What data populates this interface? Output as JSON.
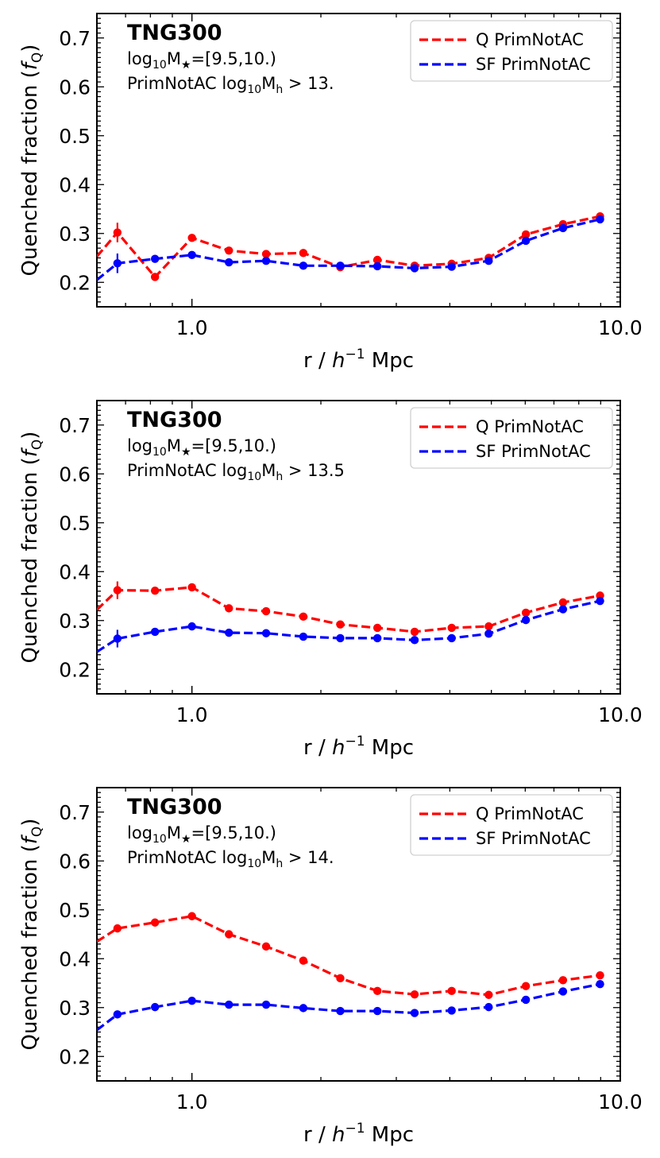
{
  "figure": {
    "panels_count": 3
  },
  "chart_data": [
    {
      "type": "line",
      "title": "TNG300",
      "annotations": [
        "log10M★=[9.5,10.)",
        "PrimNotAC log10Mh > 13."
      ],
      "annotation_parts": [
        {
          "pre": "log",
          "sub": "10",
          "post": "M",
          "sub2": "★",
          "tail": "=[9.5,10.)"
        },
        {
          "pre": "PrimNotAC log",
          "sub": "10",
          "post": "M",
          "sub2": "h",
          "tail": " > 13."
        }
      ],
      "xlabel": "r / h⁻¹ Mpc",
      "ylabel": "Quenched fraction (fQ)",
      "xscale": "log",
      "xlim": [
        0.6,
        10.0
      ],
      "ylim": [
        0.15,
        0.75
      ],
      "xtick_labels": [
        "1.0",
        "10.0"
      ],
      "ytick_labels": [
        "0.2",
        "0.3",
        "0.4",
        "0.5",
        "0.6",
        "0.7"
      ],
      "legend_position": "top-right",
      "x": [
        0.67,
        0.82,
        1.0,
        1.22,
        1.49,
        1.82,
        2.22,
        2.71,
        3.31,
        4.04,
        4.93,
        6.02,
        7.35,
        8.97
      ],
      "series": [
        {
          "name": "Q PrimNotAC",
          "color": "#ff0000",
          "values": [
            0.302,
            0.211,
            0.291,
            0.265,
            0.258,
            0.26,
            0.231,
            0.246,
            0.234,
            0.238,
            0.25,
            0.298,
            0.319,
            0.335
          ],
          "errors": [
            0.02,
            0.006,
            0.006,
            0.005,
            0.005,
            0.005,
            0.005,
            0.005,
            0.005,
            0.005,
            0.005,
            0.005,
            0.005,
            0.005
          ],
          "edge_values": [
            0.253,
            0.335
          ]
        },
        {
          "name": "SF PrimNotAC",
          "color": "#0000ff",
          "values": [
            0.239,
            0.248,
            0.256,
            0.241,
            0.244,
            0.234,
            0.234,
            0.233,
            0.229,
            0.232,
            0.244,
            0.285,
            0.311,
            0.329
          ],
          "errors": [
            0.02,
            0.006,
            0.006,
            0.005,
            0.005,
            0.005,
            0.005,
            0.005,
            0.005,
            0.005,
            0.005,
            0.005,
            0.005,
            0.005
          ],
          "edge_values": [
            0.205,
            0.329
          ]
        }
      ]
    },
    {
      "type": "line",
      "title": "TNG300",
      "annotations": [
        "log10M★=[9.5,10.)",
        "PrimNotAC log10Mh > 13.5"
      ],
      "annotation_parts": [
        {
          "pre": "log",
          "sub": "10",
          "post": "M",
          "sub2": "★",
          "tail": "=[9.5,10.)"
        },
        {
          "pre": "PrimNotAC log",
          "sub": "10",
          "post": "M",
          "sub2": "h",
          "tail": " > 13.5"
        }
      ],
      "xlabel": "r / h⁻¹ Mpc",
      "ylabel": "Quenched fraction (fQ)",
      "xscale": "log",
      "xlim": [
        0.6,
        10.0
      ],
      "ylim": [
        0.15,
        0.75
      ],
      "xtick_labels": [
        "1.0",
        "10.0"
      ],
      "ytick_labels": [
        "0.2",
        "0.3",
        "0.4",
        "0.5",
        "0.6",
        "0.7"
      ],
      "legend_position": "top-right",
      "x": [
        0.67,
        0.82,
        1.0,
        1.22,
        1.49,
        1.82,
        2.22,
        2.71,
        3.31,
        4.04,
        4.93,
        6.02,
        7.35,
        8.97
      ],
      "series": [
        {
          "name": "Q PrimNotAC",
          "color": "#ff0000",
          "values": [
            0.362,
            0.361,
            0.368,
            0.325,
            0.319,
            0.308,
            0.292,
            0.285,
            0.277,
            0.285,
            0.288,
            0.316,
            0.337,
            0.351
          ],
          "errors": [
            0.018,
            0.006,
            0.006,
            0.005,
            0.005,
            0.005,
            0.005,
            0.005,
            0.005,
            0.005,
            0.005,
            0.005,
            0.005,
            0.005
          ],
          "edge_values": [
            0.322,
            0.351
          ]
        },
        {
          "name": "SF PrimNotAC",
          "color": "#0000ff",
          "values": [
            0.263,
            0.277,
            0.288,
            0.275,
            0.274,
            0.267,
            0.264,
            0.264,
            0.26,
            0.264,
            0.273,
            0.301,
            0.323,
            0.34
          ],
          "errors": [
            0.018,
            0.006,
            0.006,
            0.005,
            0.005,
            0.005,
            0.005,
            0.005,
            0.005,
            0.005,
            0.005,
            0.005,
            0.005,
            0.005
          ],
          "edge_values": [
            0.236,
            0.34
          ]
        }
      ]
    },
    {
      "type": "line",
      "title": "TNG300",
      "annotations": [
        "log10M★=[9.5,10.)",
        "PrimNotAC log10Mh > 14."
      ],
      "annotation_parts": [
        {
          "pre": "log",
          "sub": "10",
          "post": "M",
          "sub2": "★",
          "tail": "=[9.5,10.)"
        },
        {
          "pre": "PrimNotAC log",
          "sub": "10",
          "post": "M",
          "sub2": "h",
          "tail": " > 14."
        }
      ],
      "xlabel": "r / h⁻¹ Mpc",
      "ylabel": "Quenched fraction (fQ)",
      "xscale": "log",
      "xlim": [
        0.6,
        10.0
      ],
      "ylim": [
        0.15,
        0.75
      ],
      "xtick_labels": [
        "1.0",
        "10.0"
      ],
      "ytick_labels": [
        "0.2",
        "0.3",
        "0.4",
        "0.5",
        "0.6",
        "0.7"
      ],
      "legend_position": "top-right",
      "x": [
        0.67,
        0.82,
        1.0,
        1.22,
        1.49,
        1.82,
        2.22,
        2.71,
        3.31,
        4.04,
        4.93,
        6.02,
        7.35,
        8.97
      ],
      "series": [
        {
          "name": "Q PrimNotAC",
          "color": "#ff0000",
          "values": [
            0.462,
            0.474,
            0.487,
            0.45,
            0.425,
            0.396,
            0.36,
            0.334,
            0.327,
            0.334,
            0.326,
            0.344,
            0.356,
            0.366
          ],
          "errors": [
            0.008,
            0.006,
            0.006,
            0.005,
            0.005,
            0.005,
            0.005,
            0.005,
            0.005,
            0.005,
            0.005,
            0.005,
            0.005,
            0.005
          ],
          "edge_values": [
            0.435,
            0.366
          ]
        },
        {
          "name": "SF PrimNotAC",
          "color": "#0000ff",
          "values": [
            0.286,
            0.301,
            0.314,
            0.306,
            0.306,
            0.299,
            0.293,
            0.293,
            0.289,
            0.294,
            0.301,
            0.316,
            0.333,
            0.348
          ],
          "errors": [
            0.008,
            0.006,
            0.006,
            0.005,
            0.005,
            0.005,
            0.005,
            0.005,
            0.005,
            0.005,
            0.005,
            0.005,
            0.005,
            0.005
          ],
          "edge_values": [
            0.254,
            0.348
          ]
        }
      ]
    }
  ]
}
